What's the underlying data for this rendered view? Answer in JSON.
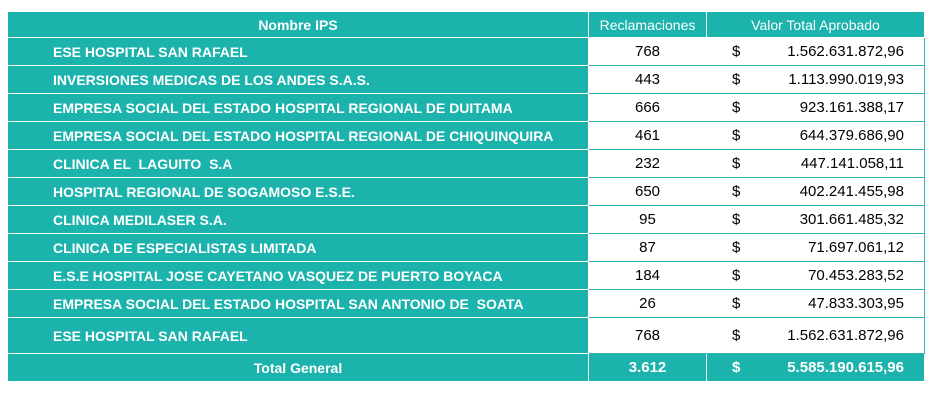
{
  "headers": {
    "name": "Nombre IPS",
    "claims": "Reclamaciones",
    "value": "Valor Total Aprobado"
  },
  "rows": [
    {
      "name": "ESE HOSPITAL SAN RAFAEL",
      "claims": "768",
      "currency": "$",
      "value": "1.562.631.872,96"
    },
    {
      "name": "INVERSIONES MEDICAS DE LOS ANDES S.A.S.",
      "claims": "443",
      "currency": "$",
      "value": "1.113.990.019,93"
    },
    {
      "name": "EMPRESA SOCIAL DEL ESTADO HOSPITAL REGIONAL DE DUITAMA",
      "claims": "666",
      "currency": "$",
      "value": "923.161.388,17"
    },
    {
      "name": "EMPRESA SOCIAL DEL ESTADO HOSPITAL REGIONAL DE CHIQUINQUIRA",
      "claims": "461",
      "currency": "$",
      "value": "644.379.686,90"
    },
    {
      "name": "CLINICA EL  LAGUITO  S.A",
      "claims": "232",
      "currency": "$",
      "value": "447.141.058,11"
    },
    {
      "name": "HOSPITAL REGIONAL DE SOGAMOSO E.S.E.",
      "claims": "650",
      "currency": "$",
      "value": "402.241.455,98"
    },
    {
      "name": "CLINICA MEDILASER S.A.",
      "claims": "95",
      "currency": "$",
      "value": "301.661.485,32"
    },
    {
      "name": "CLINICA DE ESPECIALISTAS LIMITADA",
      "claims": "87",
      "currency": "$",
      "value": "71.697.061,12"
    },
    {
      "name": "E.S.E HOSPITAL JOSE CAYETANO VASQUEZ DE PUERTO BOYACA",
      "claims": "184",
      "currency": "$",
      "value": "70.453.283,52"
    },
    {
      "name": "EMPRESA SOCIAL DEL ESTADO HOSPITAL SAN ANTONIO DE  SOATA",
      "claims": "26",
      "currency": "$",
      "value": "47.833.303,95"
    },
    {
      "name": "ESE HOSPITAL SAN RAFAEL",
      "claims": "768",
      "currency": "$",
      "value": "1.562.631.872,96"
    }
  ],
  "total": {
    "label": "Total General",
    "claims": "3.612",
    "currency": "$",
    "value": "5.585.190.615,96"
  },
  "colors": {
    "teal": "#1db3ad",
    "text_on_teal": "#ffffff"
  }
}
